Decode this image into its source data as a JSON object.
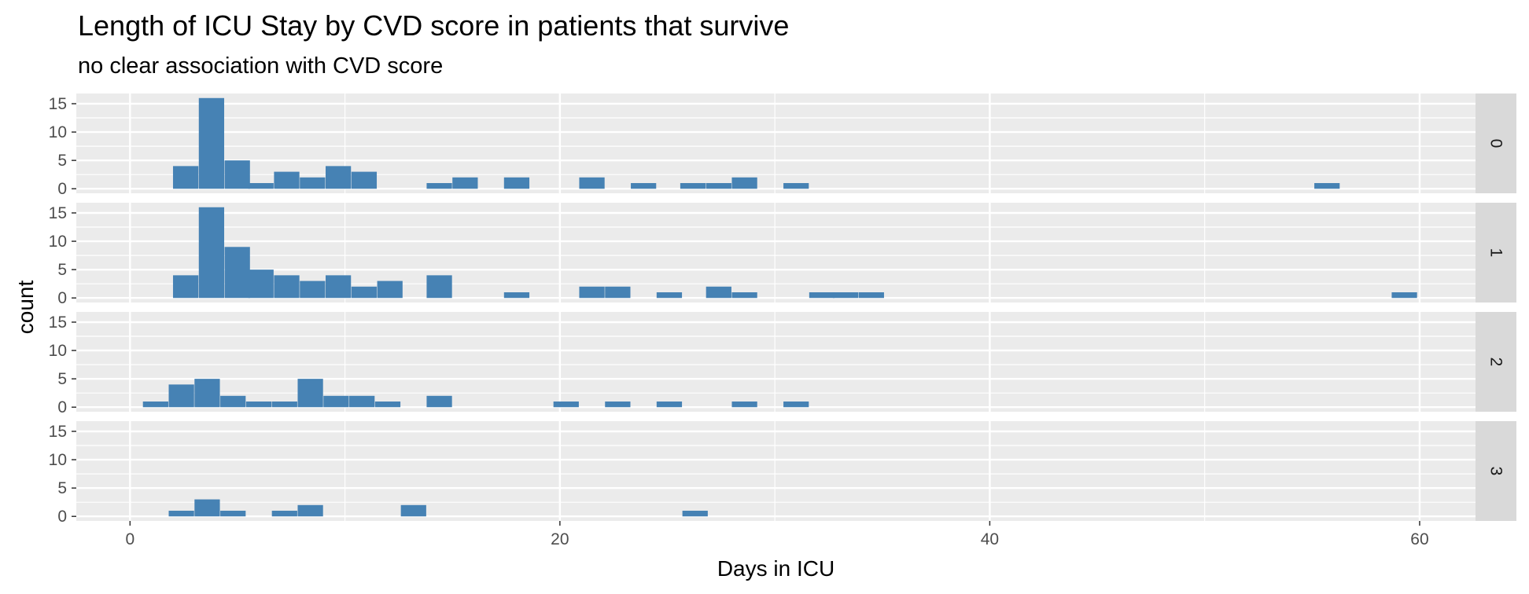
{
  "chart_data": {
    "type": "bar",
    "title": "Length of ICU Stay by CVD score in patients that survive",
    "subtitle": "no clear association with CVD score",
    "xlabel": "Days in ICU",
    "ylabel": "count",
    "xlim": [
      -2.5,
      62.6
    ],
    "ylim": [
      -0.8,
      16.8
    ],
    "x_ticks": [
      0,
      20,
      40,
      60
    ],
    "y_ticks": [
      0,
      5,
      10,
      15
    ],
    "bin_width": 1.18,
    "bar_color": "#4682B4",
    "panel_background": "#EBEBEB",
    "strip_background": "#D9D9D9",
    "grid": true,
    "facets": [
      {
        "label": "0",
        "bins": [
          {
            "x": 2.0,
            "count": 4
          },
          {
            "x": 3.2,
            "count": 16
          },
          {
            "x": 4.4,
            "count": 5
          },
          {
            "x": 5.5,
            "count": 1
          },
          {
            "x": 6.7,
            "count": 3
          },
          {
            "x": 7.9,
            "count": 2
          },
          {
            "x": 9.1,
            "count": 4
          },
          {
            "x": 10.3,
            "count": 3
          },
          {
            "x": 13.8,
            "count": 1
          },
          {
            "x": 15.0,
            "count": 2
          },
          {
            "x": 17.4,
            "count": 2
          },
          {
            "x": 20.9,
            "count": 2
          },
          {
            "x": 23.3,
            "count": 1
          },
          {
            "x": 25.6,
            "count": 1
          },
          {
            "x": 26.8,
            "count": 1
          },
          {
            "x": 28.0,
            "count": 2
          },
          {
            "x": 30.4,
            "count": 1
          },
          {
            "x": 55.1,
            "count": 1
          }
        ]
      },
      {
        "label": "1",
        "bins": [
          {
            "x": 2.0,
            "count": 4
          },
          {
            "x": 3.2,
            "count": 16
          },
          {
            "x": 4.4,
            "count": 9
          },
          {
            "x": 5.5,
            "count": 5
          },
          {
            "x": 6.7,
            "count": 4
          },
          {
            "x": 7.9,
            "count": 3
          },
          {
            "x": 9.1,
            "count": 4
          },
          {
            "x": 10.3,
            "count": 2
          },
          {
            "x": 11.5,
            "count": 3
          },
          {
            "x": 13.8,
            "count": 4
          },
          {
            "x": 17.4,
            "count": 1
          },
          {
            "x": 20.9,
            "count": 2
          },
          {
            "x": 22.1,
            "count": 2
          },
          {
            "x": 24.5,
            "count": 1
          },
          {
            "x": 26.8,
            "count": 2
          },
          {
            "x": 28.0,
            "count": 1
          },
          {
            "x": 31.6,
            "count": 1
          },
          {
            "x": 32.7,
            "count": 1
          },
          {
            "x": 33.9,
            "count": 1
          },
          {
            "x": 58.7,
            "count": 1
          }
        ]
      },
      {
        "label": "2",
        "bins": [
          {
            "x": 0.6,
            "count": 1
          },
          {
            "x": 1.8,
            "count": 4
          },
          {
            "x": 3.0,
            "count": 5
          },
          {
            "x": 4.2,
            "count": 2
          },
          {
            "x": 5.4,
            "count": 1
          },
          {
            "x": 6.6,
            "count": 1
          },
          {
            "x": 7.8,
            "count": 5
          },
          {
            "x": 9.0,
            "count": 2
          },
          {
            "x": 10.2,
            "count": 2
          },
          {
            "x": 11.4,
            "count": 1
          },
          {
            "x": 13.8,
            "count": 2
          },
          {
            "x": 19.7,
            "count": 1
          },
          {
            "x": 22.1,
            "count": 1
          },
          {
            "x": 24.5,
            "count": 1
          },
          {
            "x": 28.0,
            "count": 1
          },
          {
            "x": 30.4,
            "count": 1
          }
        ]
      },
      {
        "label": "3",
        "bins": [
          {
            "x": 1.8,
            "count": 1
          },
          {
            "x": 3.0,
            "count": 3
          },
          {
            "x": 4.2,
            "count": 1
          },
          {
            "x": 6.6,
            "count": 1
          },
          {
            "x": 7.8,
            "count": 2
          },
          {
            "x": 12.6,
            "count": 2
          },
          {
            "x": 25.7,
            "count": 1
          }
        ]
      }
    ]
  }
}
